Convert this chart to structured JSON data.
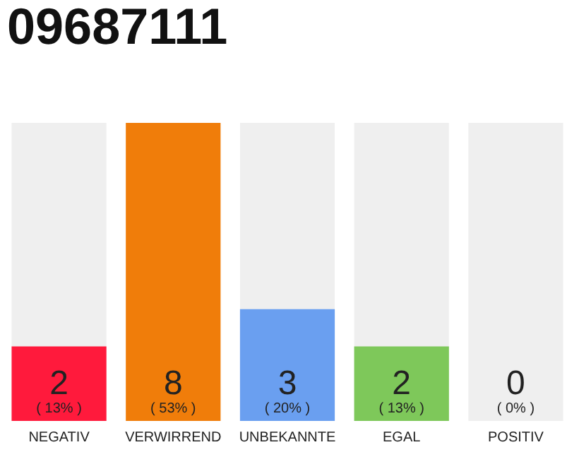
{
  "chart_data": {
    "type": "bar",
    "title": "09687111",
    "categories": [
      "NEGATIV",
      "VERWIRREND",
      "UNBEKANNTE",
      "EGAL",
      "POSITIV"
    ],
    "values": [
      2,
      8,
      3,
      2,
      0
    ],
    "colors": [
      "#ff1a3c",
      "#f07d0a",
      "#6a9ff0",
      "#7ec85a",
      "#cccccc"
    ],
    "ylim": [
      0,
      8
    ],
    "tick_labels": "x",
    "data_labels": true,
    "grid": false,
    "bands": [
      {
        "axis": "x",
        "from": "NEGATIV",
        "to": "NEGATIV",
        "color": "#efefef"
      },
      {
        "axis": "x",
        "from": "UNBEKANNTE",
        "to": "UNBEKANNTE",
        "color": "#efefef"
      },
      {
        "axis": "x",
        "from": "EGAL",
        "to": "EGAL",
        "color": "#efefef"
      },
      {
        "axis": "x",
        "from": "POSITIV",
        "to": "POSITIV",
        "color": "#efefef"
      }
    ],
    "annotations": [
      "( 13% )",
      "( 53% )",
      "( 20% )",
      "( 13% )",
      "( 0% )"
    ]
  }
}
